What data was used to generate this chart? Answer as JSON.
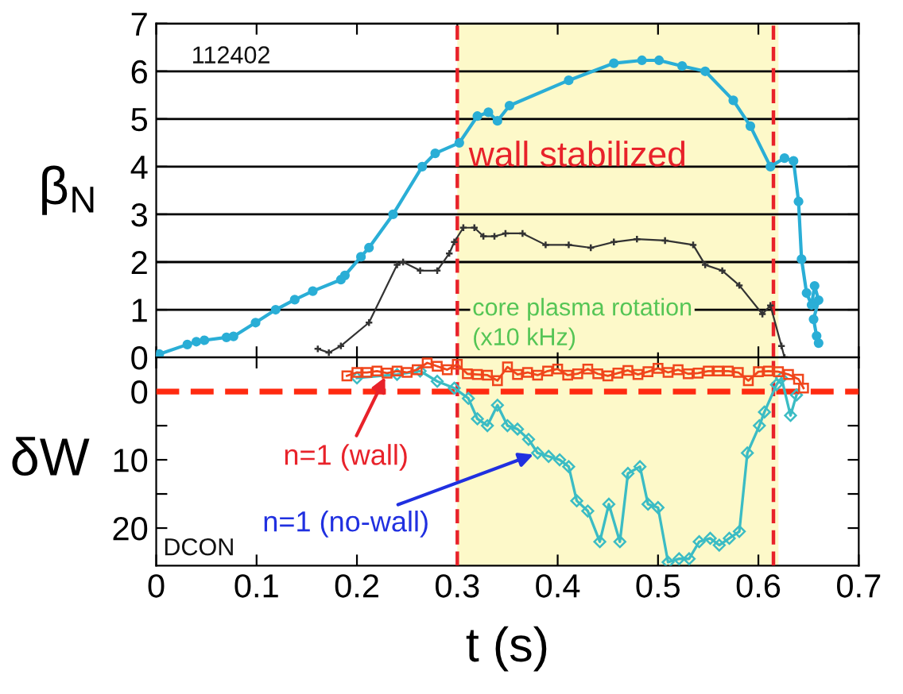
{
  "chart_data": [
    {
      "type": "line",
      "ylabel": "β$_{N}$",
      "xlim": [
        0,
        0.7
      ],
      "ylim": [
        0,
        7
      ],
      "yticks": [
        0,
        1,
        2,
        3,
        4,
        5,
        6,
        7
      ],
      "xticks": [
        0,
        0.1,
        0.2,
        0.3,
        0.4,
        0.5,
        0.6,
        0.7
      ],
      "grid": "y",
      "tick_labels": "y",
      "annotations": [
        "112402",
        "wall stabilized",
        "core plasma rotation\n(x10 kHz)"
      ],
      "bands": [
        {
          "axis": "x",
          "from": 0.3,
          "to": 0.62,
          "color": "#fdf9c9"
        }
      ],
      "ref_lines": [
        {
          "axis": "x",
          "value": 0.3,
          "color": "#e8222a",
          "line_style": "dashed"
        },
        {
          "axis": "x",
          "value": 0.615,
          "color": "#e8222a",
          "line_style": "dashed"
        }
      ],
      "series": [
        {
          "color": "#2aaed6",
          "marker": "circle",
          "line_style": "solid",
          "x": [
            0,
            0.003,
            0.031,
            0.04,
            0.048,
            0.07,
            0.077,
            0.099,
            0.119,
            0.138,
            0.156,
            0.184,
            0.188,
            0.204,
            0.212,
            0.236,
            0.265,
            0.278,
            0.302,
            0.32,
            0.331,
            0.34,
            0.352,
            0.411,
            0.456,
            0.484,
            0.501,
            0.524,
            0.547,
            0.575,
            0.592,
            0.612,
            0.626,
            0.635,
            0.64,
            0.643,
            0.648,
            0.653,
            0.656,
            0.66,
            0.655,
            0.658,
            0.66
          ],
          "values": [
            0,
            0.07,
            0.27,
            0.33,
            0.36,
            0.42,
            0.44,
            0.73,
            1.0,
            1.21,
            1.39,
            1.63,
            1.72,
            2.11,
            2.3,
            3.0,
            4.0,
            4.28,
            4.5,
            5.06,
            5.14,
            4.96,
            5.28,
            5.81,
            6.17,
            6.23,
            6.23,
            6.11,
            6.0,
            5.39,
            4.85,
            4.0,
            4.18,
            4.12,
            3.27,
            2.06,
            1.35,
            1.1,
            1.5,
            1.2,
            0.8,
            0.45,
            0.3
          ]
        },
        {
          "color": "#333333",
          "marker": "cross",
          "line_style": "solid",
          "x": [
            0.161,
            0.172,
            0.184,
            0.212,
            0.24,
            0.246,
            0.263,
            0.28,
            0.292,
            0.297,
            0.306,
            0.317,
            0.326,
            0.337,
            0.348,
            0.365,
            0.388,
            0.411,
            0.433,
            0.456,
            0.479,
            0.507,
            0.535,
            0.547,
            0.564,
            0.581,
            0.604,
            0.612,
            0.623,
            0.626
          ],
          "values": [
            0.18,
            0.1,
            0.24,
            0.73,
            1.94,
            2.0,
            1.82,
            1.82,
            2.18,
            2.42,
            2.72,
            2.72,
            2.54,
            2.54,
            2.6,
            2.6,
            2.36,
            2.36,
            2.3,
            2.42,
            2.48,
            2.45,
            2.36,
            1.94,
            1.82,
            1.51,
            0.91,
            1.09,
            0.24,
            0
          ]
        }
      ]
    },
    {
      "type": "line",
      "ylabel": "δW",
      "xlabel": "t (s)",
      "xlim": [
        0,
        0.7
      ],
      "ylim": [
        25.5,
        -5
      ],
      "xticks": [
        0,
        {
          "value": 0.1,
          "label": "0.1"
        },
        0.2,
        0.3,
        0.4,
        0.5,
        0.6,
        0.7
      ],
      "yticks": [
        0,
        {
          "value": 5,
          "label": null
        },
        10,
        {
          "value": 15,
          "label": null
        },
        20
      ],
      "grid": false,
      "annotations": [
        "DCON"
      ],
      "bands": [
        {
          "axis": "x",
          "from": 0.3,
          "to": 0.62,
          "color": "#fdf9c9"
        }
      ],
      "ref_lines": [
        {
          "axis": "x",
          "value": 0.3,
          "color": "#e8222a",
          "line_style": "dashed"
        },
        {
          "axis": "x",
          "value": 0.615,
          "color": "#e8222a",
          "line_style": "dashed"
        },
        {
          "axis": "y",
          "value": 0,
          "color": "#ff2a10",
          "line_style": "dashed"
        }
      ],
      "series": [
        {
          "name": "n=1 (wall)",
          "color": "#f0461c",
          "marker": "square",
          "line_style": "solid",
          "x": [
            0.19,
            0.2,
            0.21,
            0.22,
            0.23,
            0.24,
            0.25,
            0.26,
            0.27,
            0.28,
            0.29,
            0.3,
            0.31,
            0.32,
            0.33,
            0.34,
            0.35,
            0.36,
            0.37,
            0.38,
            0.39,
            0.4,
            0.41,
            0.42,
            0.43,
            0.44,
            0.45,
            0.46,
            0.47,
            0.48,
            0.49,
            0.5,
            0.51,
            0.52,
            0.53,
            0.54,
            0.55,
            0.56,
            0.57,
            0.58,
            0.59,
            0.6,
            0.61,
            0.62,
            0.63,
            0.64,
            0.645
          ],
          "values": [
            -2.3,
            -2.8,
            -2.8,
            -3.0,
            -2.7,
            -3.0,
            -2.8,
            -3.2,
            -4.2,
            -3.7,
            -3.2,
            -4.0,
            -2.6,
            -2.5,
            -2.4,
            -1.6,
            -3.6,
            -2.5,
            -2.8,
            -2.4,
            -3.0,
            -3.3,
            -2.4,
            -2.6,
            -3.3,
            -2.6,
            -2.3,
            -2.7,
            -3.1,
            -2.5,
            -2.9,
            -3.4,
            -2.8,
            -3.2,
            -2.6,
            -2.7,
            -3.0,
            -3.0,
            -3.0,
            -2.8,
            -1.6,
            -2.9,
            -3.0,
            -2.9,
            -2.5,
            -1.8,
            -0.5
          ]
        },
        {
          "name": "n=1 (no-wall)",
          "color": "#3bbcc4",
          "marker": "diamond",
          "line_style": "solid",
          "x": [
            0.2,
            0.24,
            0.263,
            0.28,
            0.297,
            0.311,
            0.32,
            0.33,
            0.34,
            0.35,
            0.36,
            0.371,
            0.38,
            0.391,
            0.402,
            0.411,
            0.419,
            0.43,
            0.442,
            0.451,
            0.462,
            0.47,
            0.482,
            0.49,
            0.5,
            0.51,
            0.521,
            0.531,
            0.541,
            0.552,
            0.561,
            0.571,
            0.581,
            0.589,
            0.601,
            0.606,
            0.618,
            0.623,
            0.632,
            0.638
          ],
          "values": [
            -2,
            -2.5,
            -3,
            -1.5,
            -0.5,
            1,
            4,
            5,
            2,
            5,
            5.5,
            7,
            9,
            9.5,
            10,
            11,
            16,
            17.5,
            22,
            16.5,
            22,
            12,
            11,
            16.5,
            17,
            25,
            24.5,
            24.5,
            22,
            21.5,
            22.5,
            21.5,
            20.5,
            9,
            5,
            3,
            -1,
            -2,
            3.5,
            0.5
          ]
        }
      ]
    }
  ]
}
